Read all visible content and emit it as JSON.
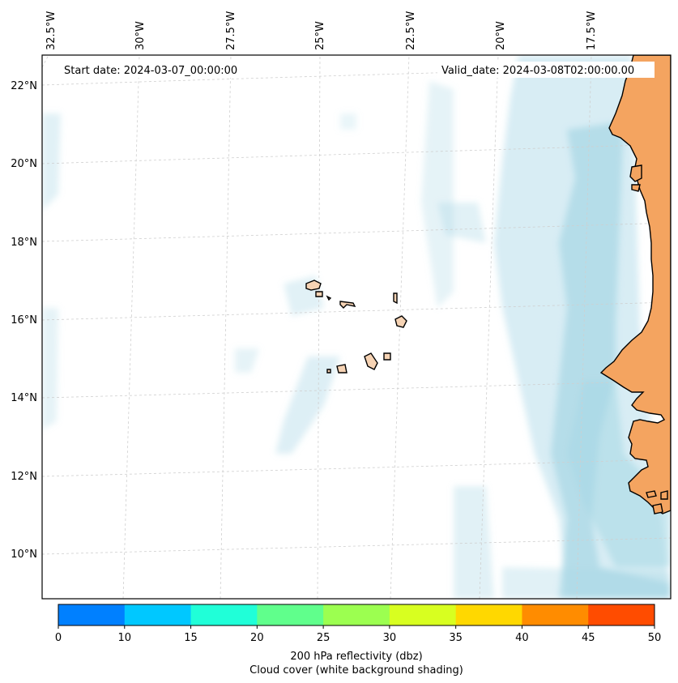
{
  "map": {
    "start_date_text": "Start date: 2024-03-07_00:00:00",
    "valid_date_text": "Valid_date: 2024-03-08T02:00:00.00",
    "lon_labels": [
      "32.5°W",
      "30°W",
      "27.5°W",
      "25°W",
      "22.5°W",
      "20°W",
      "17.5°W"
    ],
    "lat_labels": [
      "22°N",
      "20°N",
      "18°N",
      "16°N",
      "14°N",
      "12°N",
      "10°N"
    ],
    "extent": {
      "lon_min": -32.8,
      "lon_max": -15.2,
      "lat_min": 8.9,
      "lat_max": 22.8
    }
  },
  "legend": {
    "ticks": [
      "0",
      "10",
      "15",
      "20",
      "25",
      "30",
      "35",
      "40",
      "45",
      "50"
    ],
    "colors": [
      "#0080ff",
      "#00c8ff",
      "#20ffd8",
      "#60ff8c",
      "#9cff50",
      "#d8ff20",
      "#ffd800",
      "#ff8c00",
      "#ff4c00"
    ],
    "label_line1": "200 hPa reflectivity (dbz)",
    "label_line2": "Cloud cover (white background shading)"
  }
}
